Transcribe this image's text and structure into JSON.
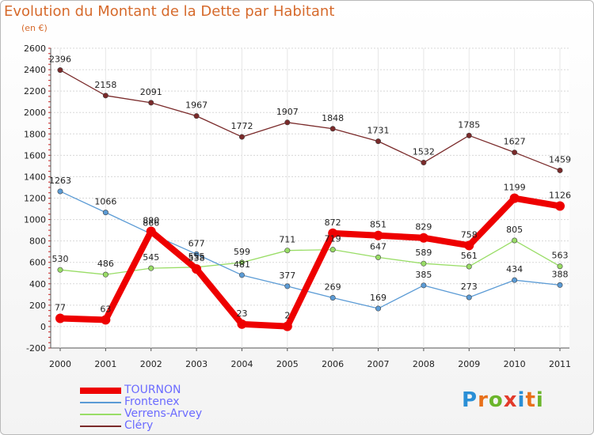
{
  "header": {
    "title": "Evolution du Montant de la Dette par Habitant",
    "subtitle": "(en €)"
  },
  "logo": {
    "letters": [
      "P",
      "r",
      "o",
      "x",
      "i",
      "t",
      "i"
    ],
    "colors": [
      "#2a8fd6",
      "#e8701a",
      "#6bb52b",
      "#e23a2a",
      "#2a8fd6",
      "#e8701a",
      "#6bb52b"
    ]
  },
  "chart_data": {
    "type": "line",
    "categories": [
      "2000",
      "2001",
      "2002",
      "2003",
      "2004",
      "2005",
      "2006",
      "2007",
      "2008",
      "2009",
      "2010",
      "2011"
    ],
    "yticks": [
      "-200",
      "0",
      "200",
      "400",
      "600",
      "800",
      "1000",
      "1200",
      "1400",
      "1600",
      "1800",
      "2000",
      "2200",
      "2400",
      "2600"
    ],
    "ylim": [
      -200,
      2600
    ],
    "grid": true,
    "legend_position": "bottom-left",
    "series": [
      {
        "name": "TOURNON",
        "color": "#ee0000",
        "values": [
          77,
          63,
          890,
          538,
          23,
          2,
          872,
          851,
          829,
          758,
          1199,
          1126
        ],
        "labels": [
          "77",
          "63",
          "890",
          "538",
          "23",
          "2",
          "872",
          "851",
          "829",
          "758",
          "1199",
          "1126"
        ]
      },
      {
        "name": "Frontenex",
        "color": "#5b9bd5",
        "values": [
          1263,
          1066,
          866,
          677,
          481,
          377,
          269,
          169,
          385,
          273,
          434,
          388
        ],
        "labels": [
          "1263",
          "1066",
          "866",
          "677",
          "481",
          "377",
          "269",
          "169",
          "385",
          "273",
          "434",
          "388"
        ]
      },
      {
        "name": "Verrens-Arvey",
        "color": "#99dd66",
        "values": [
          530,
          486,
          545,
          555,
          599,
          711,
          719,
          647,
          589,
          561,
          805,
          563
        ],
        "labels": [
          "530",
          "486",
          "545",
          "555",
          "599",
          "711",
          "719",
          "647",
          "589",
          "561",
          "805",
          "563"
        ]
      },
      {
        "name": "Cléry",
        "color": "#7a2a2a",
        "values": [
          2396,
          2158,
          2091,
          1967,
          1772,
          1907,
          1848,
          1731,
          1532,
          1785,
          1627,
          1459
        ],
        "labels": [
          "2396",
          "2158",
          "2091",
          "1967",
          "1772",
          "1907",
          "1848",
          "1731",
          "1532",
          "1785",
          "1627",
          "1459"
        ]
      }
    ]
  }
}
